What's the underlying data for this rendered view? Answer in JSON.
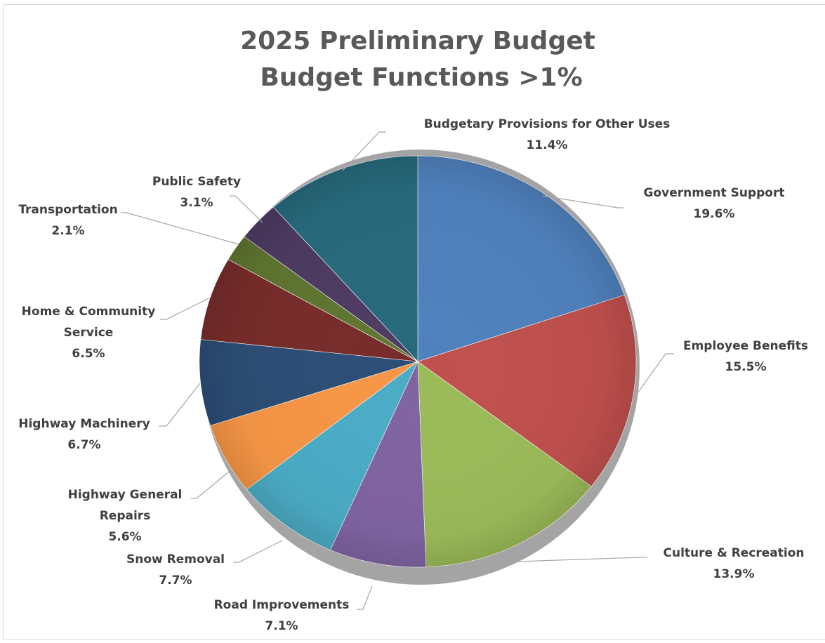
{
  "chart_data": {
    "type": "pie",
    "title_lines": [
      "2025 Preliminary Budget",
      "Budget Functions >1%"
    ],
    "slices": [
      {
        "name": "Government Support",
        "value": 19.6,
        "label_lines": [
          "Government Support"
        ],
        "pct_label": "19.6%",
        "color": "#4f81bd"
      },
      {
        "name": "Employee Benefits",
        "value": 15.5,
        "label_lines": [
          "Employee Benefits"
        ],
        "pct_label": "15.5%",
        "color": "#c0504d"
      },
      {
        "name": "Culture & Recreation",
        "value": 13.9,
        "label_lines": [
          "Culture & Recreation"
        ],
        "pct_label": "13.9%",
        "color": "#9bbb59"
      },
      {
        "name": "Road Improvements",
        "value": 7.1,
        "label_lines": [
          "Road Improvements"
        ],
        "pct_label": "7.1%",
        "color": "#8064a2"
      },
      {
        "name": "Snow Removal",
        "value": 7.7,
        "label_lines": [
          "Snow Removal"
        ],
        "pct_label": "7.7%",
        "color": "#4bacc6"
      },
      {
        "name": "Highway General Repairs",
        "value": 5.6,
        "label_lines": [
          "Highway General",
          "Repairs"
        ],
        "pct_label": "5.6%",
        "color": "#f79646"
      },
      {
        "name": "Highway Machinery",
        "value": 6.7,
        "label_lines": [
          "Highway Machinery"
        ],
        "pct_label": "6.7%",
        "color": "#2c4d75"
      },
      {
        "name": "Home & Community Service",
        "value": 6.5,
        "label_lines": [
          "Home & Community",
          "Service"
        ],
        "pct_label": "6.5%",
        "color": "#772c2a"
      },
      {
        "name": "Transportation",
        "value": 2.1,
        "label_lines": [
          "Transportation"
        ],
        "pct_label": "2.1%",
        "color": "#5f7530"
      },
      {
        "name": "Public Safety",
        "value": 3.1,
        "label_lines": [
          "Public Safety"
        ],
        "pct_label": "3.1%",
        "color": "#4d3b62"
      },
      {
        "name": "Budgetary Provisions for Other Uses",
        "value": 11.4,
        "label_lines": [
          "Budgetary Provisions for Other Uses"
        ],
        "pct_label": "11.4%",
        "color": "#276a7c"
      }
    ]
  }
}
